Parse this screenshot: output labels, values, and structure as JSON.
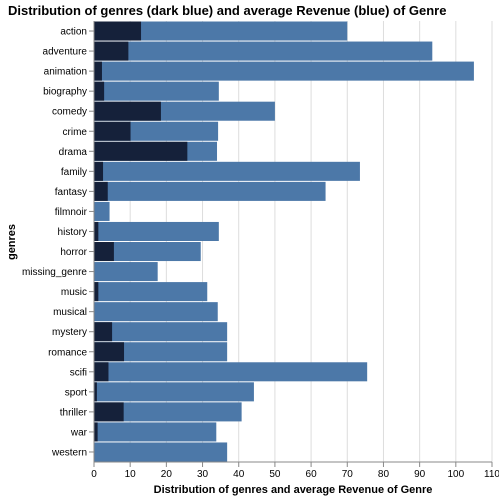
{
  "chart_data": {
    "type": "bar",
    "orientation": "horizontal",
    "title": "Distribution of genres (dark blue) and average Revenue (blue) of Genre",
    "xlabel": "Distribution of genres and average Revenue of Genre",
    "ylabel": "genres",
    "xlim": [
      0,
      110
    ],
    "x_ticks": [
      0,
      10,
      20,
      30,
      40,
      50,
      60,
      70,
      80,
      90,
      100,
      110
    ],
    "grid": true,
    "categories": [
      "action",
      "adventure",
      "animation",
      "biography",
      "comedy",
      "crime",
      "drama",
      "family",
      "fantasy",
      "filmnoir",
      "history",
      "horror",
      "missing_genre",
      "music",
      "musical",
      "mystery",
      "romance",
      "scifi",
      "sport",
      "thriller",
      "war",
      "western"
    ],
    "series": [
      {
        "color": "#4c78a8",
        "values": [
          70,
          93.5,
          105,
          34.5,
          50,
          34.3,
          34,
          73.5,
          64,
          4.3,
          34.5,
          29.5,
          17.6,
          31.3,
          34.2,
          36.8,
          36.8,
          75.5,
          44.2,
          40.8,
          33.8,
          36.8
        ]
      },
      {
        "color": "#15213a",
        "values": [
          13,
          9.5,
          2.2,
          2.8,
          18.5,
          10.1,
          25.8,
          2.5,
          3.8,
          0,
          1.2,
          5.5,
          0,
          1.2,
          0,
          5,
          8.3,
          4,
          0.8,
          8.2,
          1,
          0
        ]
      }
    ]
  }
}
